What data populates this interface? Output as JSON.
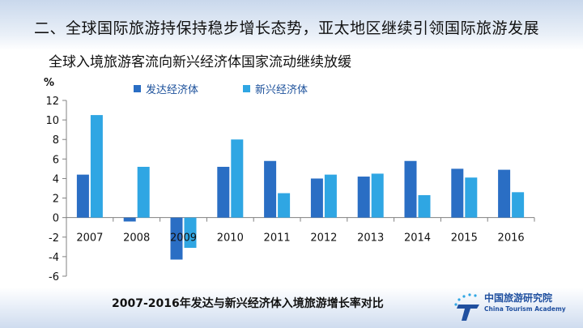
{
  "slide": {
    "title": "二、全球国际旅游持保持稳步增长态势，亚太地区继续引领国际旅游发展",
    "subtitle": "全球入境旅游客流向新兴经济体国家流动继续放缓",
    "caption": "2007-2016年发达与新兴经济体入境旅游增长率对比"
  },
  "logo": {
    "name_cn": "中国旅游研究院",
    "name_en": "China Tourism Academy",
    "icon": "china-tourism-academy-logo-icon"
  },
  "colors": {
    "developed": "#2a6ec4",
    "emerging": "#2fa6e3",
    "axis": "#808080"
  },
  "chart_data": {
    "type": "bar",
    "ylabel": "%",
    "xlabel": "",
    "ylim": [
      -6,
      12
    ],
    "yticks": [
      12,
      10,
      8,
      6,
      4,
      2,
      0,
      -2,
      -4,
      -6
    ],
    "categories": [
      "2007",
      "2008",
      "2009",
      "2010",
      "2011",
      "2012",
      "2013",
      "2014",
      "2015",
      "2016"
    ],
    "legend_position": "top-center",
    "grid": false,
    "series": [
      {
        "name": "发达经济体",
        "color": "#2a6ec4",
        "values": [
          4.4,
          -0.4,
          -4.3,
          5.2,
          5.8,
          4.0,
          4.2,
          5.8,
          5.0,
          4.9
        ]
      },
      {
        "name": "新兴经济体",
        "color": "#2fa6e3",
        "values": [
          10.5,
          5.2,
          -3.1,
          8.0,
          2.5,
          4.4,
          4.5,
          2.3,
          4.1,
          2.6
        ]
      }
    ]
  }
}
